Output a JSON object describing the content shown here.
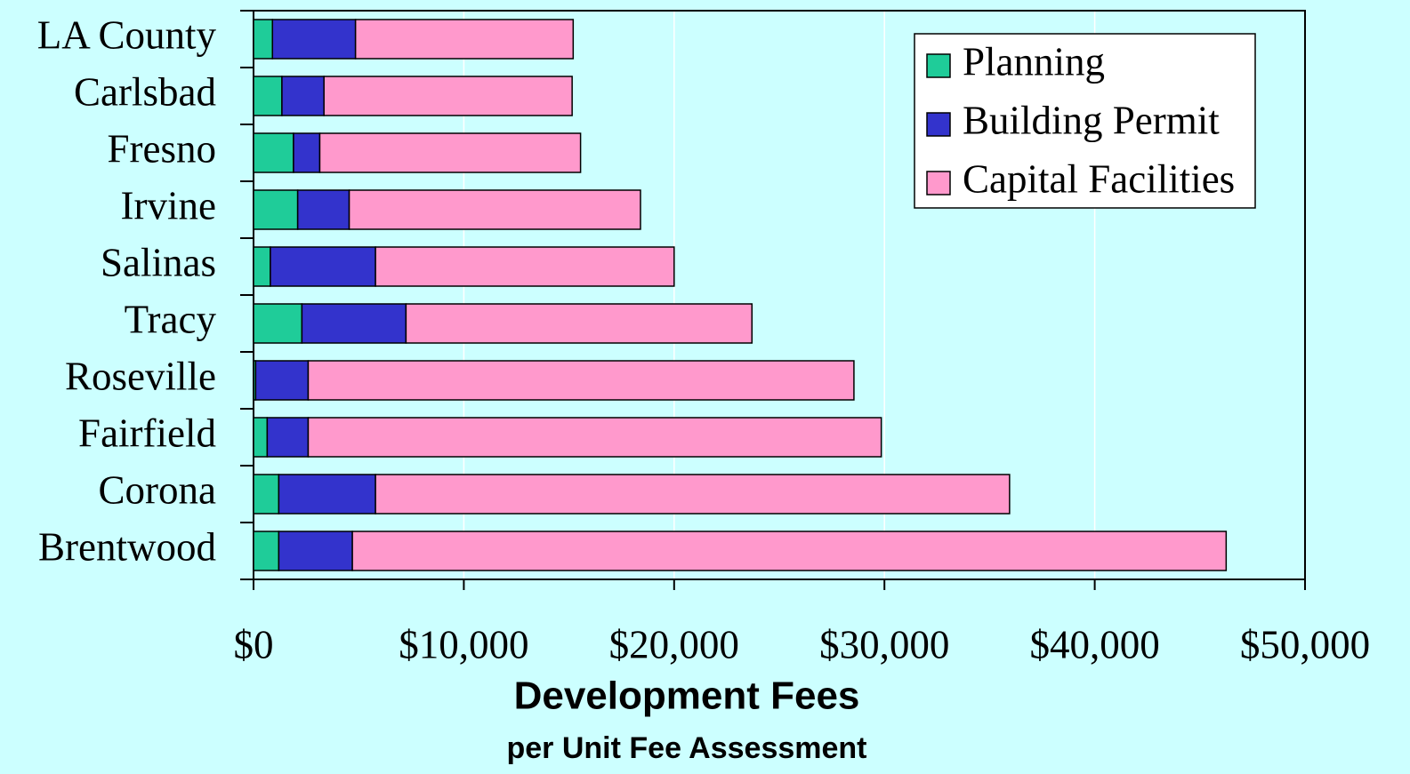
{
  "chart_data": {
    "type": "stacked_barh",
    "xlabel": "Development Fees",
    "subtitle": "per Unit Fee Assessment",
    "categories": [
      "LA County",
      "Carlsbad",
      "Fresno",
      "Irvine",
      "Salinas",
      "Tracy",
      "Roseville",
      "Fairfield",
      "Corona",
      "Brentwood"
    ],
    "series": [
      {
        "name": "Planning",
        "color": "#1fcc99",
        "values": [
          900,
          1350,
          1900,
          2100,
          800,
          2300,
          100,
          650,
          1200,
          1200
        ]
      },
      {
        "name": "Building Permit",
        "color": "#3333cc",
        "values": [
          3950,
          2000,
          1250,
          2450,
          5000,
          4950,
          2500,
          1950,
          4600,
          3500
        ]
      },
      {
        "name": "Capital Facilities",
        "color": "#ff99cc",
        "values": [
          10350,
          11800,
          12400,
          13850,
          14200,
          16450,
          25950,
          27250,
          30150,
          41550
        ]
      }
    ],
    "xlim": [
      0,
      50000
    ],
    "xticks": [
      {
        "value": 0,
        "label": "$0"
      },
      {
        "value": 10000,
        "label": "$10,000"
      },
      {
        "value": 20000,
        "label": "$20,000"
      },
      {
        "value": 30000,
        "label": "$30,000"
      },
      {
        "value": 40000,
        "label": "$40,000"
      },
      {
        "value": 50000,
        "label": "$50,000"
      }
    ],
    "grid": true,
    "legend": "upper right"
  }
}
